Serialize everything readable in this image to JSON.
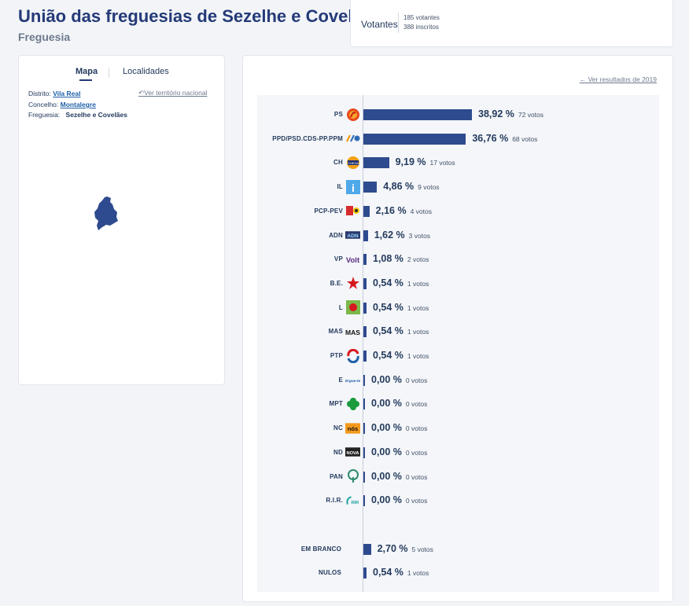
{
  "header": {
    "title": "União das freguesias de Sezelhe e Covelães",
    "subtitle": "Freguesia"
  },
  "summary": {
    "votantes_label": "Votantes",
    "votantes": "185 votantes",
    "inscritos": "388 inscritos"
  },
  "map_panel": {
    "tab_mapa": "Mapa",
    "tab_localidades": "Localidades",
    "distrito_label": "Distrito:",
    "distrito": "Vila Real",
    "concelho_label": "Concelho:",
    "concelho": "Montalegre",
    "freguesia_label": "Freguesia:",
    "freguesia": "Sezelhe e Covelães",
    "ver_nacional": "Ver território nacional",
    "region_color": "#2f4b8f"
  },
  "results": {
    "ver_2019": "← Ver resultados de 2019",
    "accent_color": "#2f4b8f"
  },
  "chart_data": {
    "type": "bar",
    "orientation": "horizontal",
    "categories": [
      "PS",
      "PPD/PSD.CDS-PP.PPM",
      "CH",
      "IL",
      "PCP-PEV",
      "ADN",
      "VP",
      "B.E.",
      "L",
      "MAS",
      "PTP",
      "E",
      "MPT",
      "NC",
      "ND",
      "PAN",
      "R.I.R.",
      "EM BRANCO",
      "NULOS"
    ],
    "values": [
      38.92,
      36.76,
      9.19,
      4.86,
      2.16,
      1.62,
      1.08,
      0.54,
      0.54,
      0.54,
      0.54,
      0.0,
      0.0,
      0.0,
      0.0,
      0.0,
      0.0,
      2.7,
      0.54
    ],
    "pct_labels": [
      "38,92 %",
      "36,76 %",
      "9,19 %",
      "4,86 %",
      "2,16 %",
      "1,62 %",
      "1,08 %",
      "0,54 %",
      "0,54 %",
      "0,54 %",
      "0,54 %",
      "0,00 %",
      "0,00 %",
      "0,00 %",
      "0,00 %",
      "0,00 %",
      "0,00 %",
      "2,70 %",
      "0,54 %"
    ],
    "vote_labels": [
      "72 votos",
      "68 votos",
      "17 votos",
      "9 votos",
      "4 votos",
      "3 votos",
      "2 votos",
      "1 votos",
      "1 votos",
      "1 votos",
      "1 votos",
      "0 votos",
      "0 votos",
      "0 votos",
      "0 votos",
      "0 votos",
      "0 votos",
      "5 votos",
      "1 votos"
    ],
    "logos": [
      "ps-logo-icon",
      "psd-cds-logo-icon",
      "ch-logo-icon",
      "il-logo-icon",
      "pcp-pev-logo-icon",
      "adn-logo-icon",
      "volt-logo-icon",
      "be-star-logo-icon",
      "livre-logo-icon",
      "mas-logo-icon",
      "ptp-logo-icon",
      "e-logo-icon",
      "mpt-clover-logo-icon",
      "nc-logo-icon",
      "nd-logo-icon",
      "pan-tree-logo-icon",
      "rir-logo-icon",
      "",
      ""
    ],
    "logo_texts": [
      "",
      "",
      "CHEGA",
      "i",
      "",
      "ADN",
      "Volt",
      "",
      "",
      "MAS",
      "",
      "Ergue-te",
      "",
      "nós",
      "NOVA",
      "",
      "RIR",
      "",
      ""
    ],
    "xlim": [
      0,
      100
    ],
    "grid": false,
    "legend": "none"
  }
}
